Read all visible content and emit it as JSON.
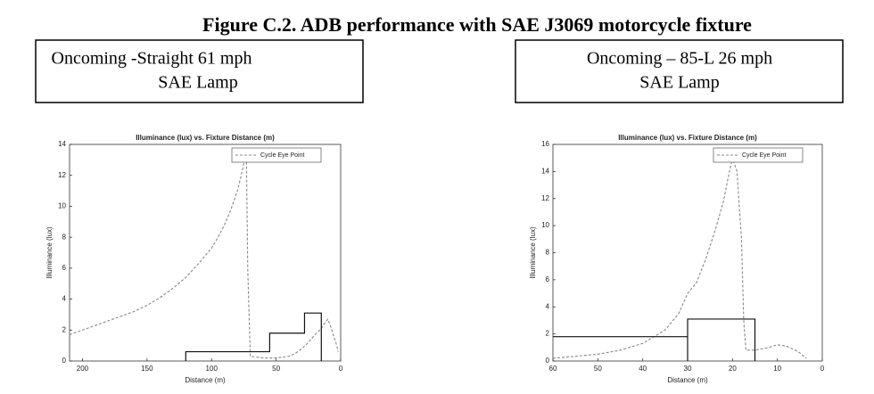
{
  "figure_title": "Figure C.2. ADB performance with SAE J3069 motorcycle fixture",
  "chart_data": [
    {
      "type": "line",
      "caption": [
        "Oncoming -Straight 61 mph",
        "SAE Lamp"
      ],
      "title": "Illuminance (lux) vs. Fixture Distance (m)",
      "xlabel": "Distance (m)",
      "ylabel": "Illuminance (lux)",
      "xlim": [
        210,
        0
      ],
      "xticks": [
        200,
        150,
        100,
        50,
        0
      ],
      "ylim": [
        0,
        14
      ],
      "yticks": [
        0,
        2,
        4,
        6,
        8,
        10,
        12,
        14
      ],
      "legend": "upper right",
      "series": [
        {
          "name": "Cycle Eye Point",
          "color": "#888888",
          "style": "dashed",
          "x": [
            210,
            200,
            190,
            180,
            170,
            160,
            150,
            140,
            130,
            120,
            110,
            100,
            95,
            90,
            85,
            80,
            77,
            75,
            73,
            72,
            70,
            60,
            50,
            40,
            35,
            30,
            25,
            20,
            15,
            12,
            10,
            8,
            5,
            3,
            2
          ],
          "values": [
            1.7,
            2.0,
            2.3,
            2.6,
            2.9,
            3.2,
            3.6,
            4.1,
            4.7,
            5.4,
            6.3,
            7.3,
            8.0,
            8.8,
            9.8,
            11.0,
            12.0,
            12.8,
            13.0,
            6,
            0.3,
            0.2,
            0.2,
            0.3,
            0.5,
            0.8,
            1.2,
            1.7,
            2.1,
            2.5,
            2.7,
            2.3,
            1.5,
            1.0,
            0.6
          ]
        },
        {
          "color": "#111111",
          "style": "solid",
          "x": [
            120,
            120,
            55,
            55,
            28,
            28,
            15,
            15
          ],
          "values": [
            0,
            0.6,
            0.6,
            1.8,
            1.8,
            3.1,
            3.1,
            0
          ]
        }
      ]
    },
    {
      "type": "line",
      "caption": [
        "Oncoming – 85-L 26 mph",
        "SAE Lamp"
      ],
      "title": "Illuminance (lux) vs. Fixture Distance (m)",
      "xlabel": "Distance (m)",
      "ylabel": "Illuminance (lux)",
      "xlim": [
        60,
        0
      ],
      "xticks": [
        60,
        50,
        40,
        30,
        20,
        10,
        0
      ],
      "ylim": [
        0,
        16
      ],
      "yticks": [
        0,
        2,
        4,
        6,
        8,
        10,
        12,
        14,
        16
      ],
      "legend": "upper right",
      "series": [
        {
          "name": "Cycle Eye Point",
          "color": "#888888",
          "style": "dashed",
          "x": [
            60,
            55,
            50,
            45,
            40,
            35,
            32,
            30,
            28,
            26,
            24,
            22,
            21,
            20,
            19,
            18,
            17.5,
            17,
            15,
            12,
            10,
            8,
            6,
            5,
            4,
            3.5
          ],
          "values": [
            0.2,
            0.35,
            0.5,
            0.8,
            1.3,
            2.3,
            3.5,
            5.0,
            5.8,
            7.5,
            9.5,
            11.8,
            13.5,
            15.0,
            14,
            9,
            3,
            0.8,
            0.8,
            1.0,
            1.2,
            1.1,
            0.8,
            0.6,
            0.3,
            0.2
          ]
        },
        {
          "color": "#111111",
          "style": "solid",
          "x": [
            60,
            30,
            30,
            30,
            15,
            15
          ],
          "values": [
            1.8,
            1.8,
            0,
            3.1,
            3.1,
            0
          ]
        }
      ]
    }
  ]
}
